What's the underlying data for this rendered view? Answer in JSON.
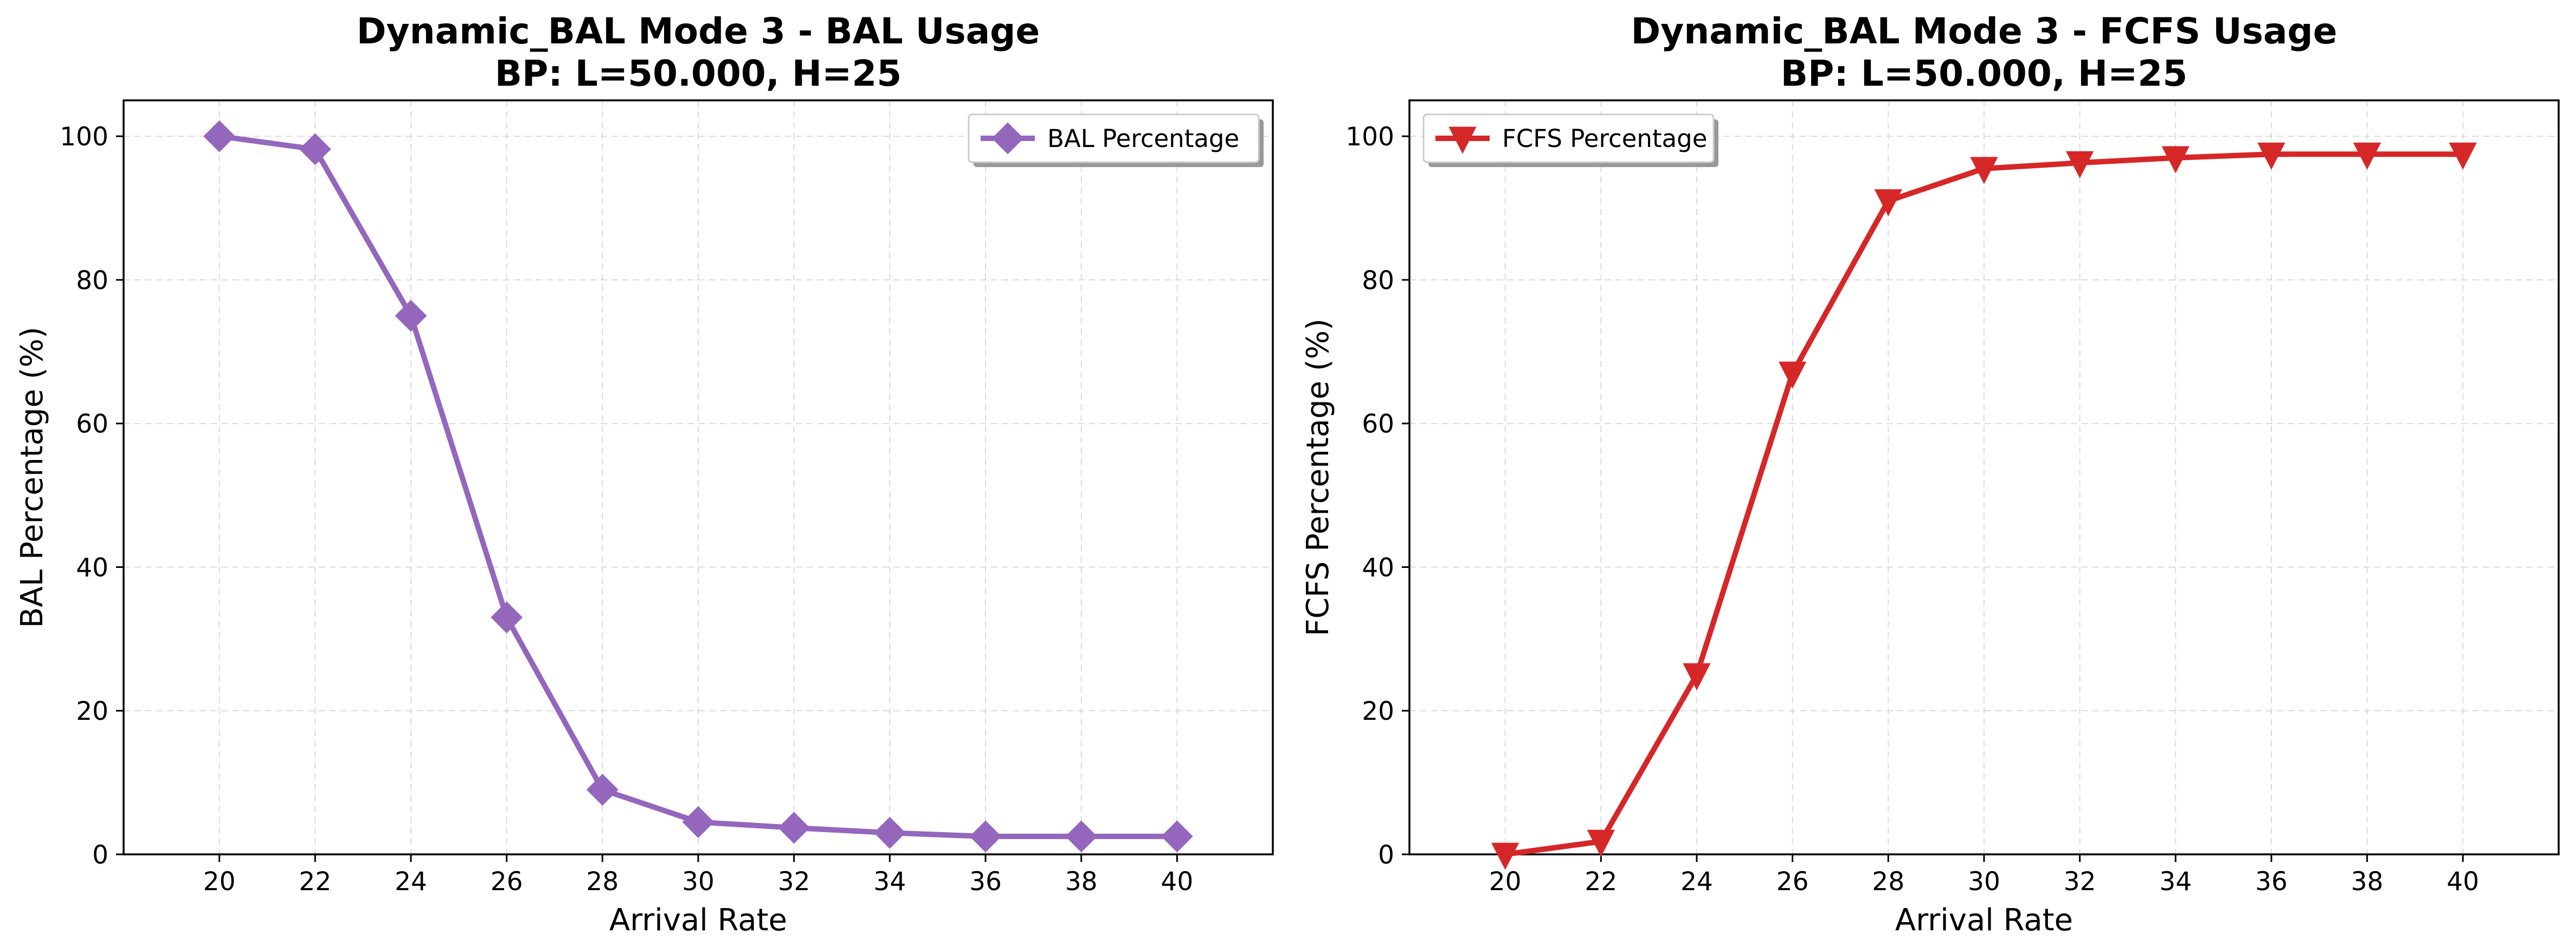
{
  "chart_data": [
    {
      "type": "line",
      "title_line1": "Dynamic_BAL Mode 3 - BAL Usage",
      "title_line2": "BP: L=50.000, H=25",
      "xlabel": "Arrival Rate",
      "ylabel": "BAL Percentage (%)",
      "x": [
        20,
        22,
        24,
        26,
        28,
        30,
        32,
        34,
        36,
        38,
        40
      ],
      "xlim": [
        18,
        42
      ],
      "ylim": [
        0,
        105
      ],
      "xticks": [
        20,
        22,
        24,
        26,
        28,
        30,
        32,
        34,
        36,
        38,
        40
      ],
      "yticks": [
        0,
        20,
        40,
        60,
        80,
        100
      ],
      "grid": true,
      "legend_position": "upper right",
      "series": [
        {
          "name": "BAL Percentage",
          "values": [
            100,
            98.2,
            75,
            33,
            9,
            4.5,
            3.7,
            3,
            2.5,
            2.5,
            2.5
          ],
          "color": "#9467bd",
          "marker": "diamond"
        }
      ]
    },
    {
      "type": "line",
      "title_line1": "Dynamic_BAL Mode 3 - FCFS Usage",
      "title_line2": "BP: L=50.000, H=25",
      "xlabel": "Arrival Rate",
      "ylabel": "FCFS Percentage (%)",
      "x": [
        20,
        22,
        24,
        26,
        28,
        30,
        32,
        34,
        36,
        38,
        40
      ],
      "xlim": [
        18,
        42
      ],
      "ylim": [
        0,
        105
      ],
      "xticks": [
        20,
        22,
        24,
        26,
        28,
        30,
        32,
        34,
        36,
        38,
        40
      ],
      "yticks": [
        0,
        20,
        40,
        60,
        80,
        100
      ],
      "grid": true,
      "legend_position": "upper left",
      "series": [
        {
          "name": "FCFS Percentage",
          "values": [
            0,
            1.8,
            25,
            67,
            91,
            95.5,
            96.3,
            97,
            97.5,
            97.5,
            97.5
          ],
          "color": "#d62728",
          "marker": "triangle-down"
        }
      ]
    }
  ]
}
